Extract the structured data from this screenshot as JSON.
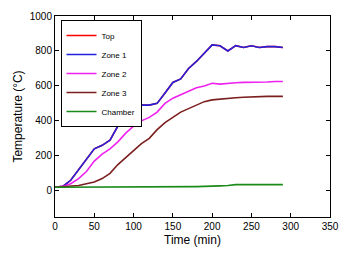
{
  "chart_data": {
    "type": "line",
    "x_label": "Time (min)",
    "y_label": "Temperature (°C)",
    "x": [
      0,
      10,
      20,
      30,
      40,
      50,
      60,
      70,
      80,
      90,
      100,
      110,
      120,
      130,
      140,
      150,
      160,
      170,
      180,
      190,
      200,
      210,
      220,
      230,
      240,
      250,
      260,
      270,
      280,
      290
    ],
    "series": [
      {
        "name": "Top",
        "color": "#ff0000",
        "values": [
          20,
          25,
          60,
          120,
          180,
          240,
          260,
          290,
          370,
          400,
          460,
          490,
          490,
          500,
          560,
          620,
          640,
          700,
          740,
          790,
          835,
          830,
          800,
          830,
          820,
          830,
          820,
          825,
          825,
          820
        ]
      },
      {
        "name": "Zone 1",
        "color": "#2222dd",
        "values": [
          20,
          25,
          60,
          120,
          180,
          240,
          260,
          290,
          370,
          400,
          460,
          490,
          490,
          500,
          560,
          620,
          640,
          700,
          740,
          790,
          835,
          830,
          800,
          830,
          820,
          830,
          820,
          825,
          825,
          820
        ]
      },
      {
        "name": "Zone 2",
        "color": "#ee22ee",
        "values": [
          20,
          25,
          40,
          70,
          110,
          170,
          210,
          240,
          280,
          330,
          370,
          400,
          420,
          450,
          500,
          530,
          550,
          570,
          590,
          600,
          615,
          610,
          615,
          618,
          620,
          620,
          620,
          622,
          625,
          625
        ]
      },
      {
        "name": "Zone 3",
        "color": "#7b1e1e",
        "values": [
          20,
          22,
          25,
          30,
          40,
          50,
          70,
          100,
          150,
          190,
          230,
          270,
          300,
          350,
          390,
          420,
          450,
          470,
          490,
          510,
          520,
          525,
          530,
          532,
          535,
          538,
          540,
          540,
          540,
          540
        ]
      },
      {
        "name": "Chamber",
        "color": "#1a8a1a",
        "values": [
          20,
          20,
          20,
          20,
          20,
          20,
          20,
          20,
          20,
          20,
          20,
          21,
          21,
          22,
          22,
          22,
          23,
          24,
          24,
          25,
          25,
          28,
          30,
          35,
          35,
          35,
          35,
          35,
          35,
          35
        ]
      }
    ],
    "xlim": [
      0,
      350
    ],
    "xticks": [
      0,
      50,
      100,
      150,
      200,
      250,
      300,
      350
    ],
    "ylim": [
      -150,
      1000
    ],
    "yticks": [
      0,
      200,
      400,
      600,
      800,
      1000
    ],
    "legend": "upper left",
    "grid": false
  }
}
